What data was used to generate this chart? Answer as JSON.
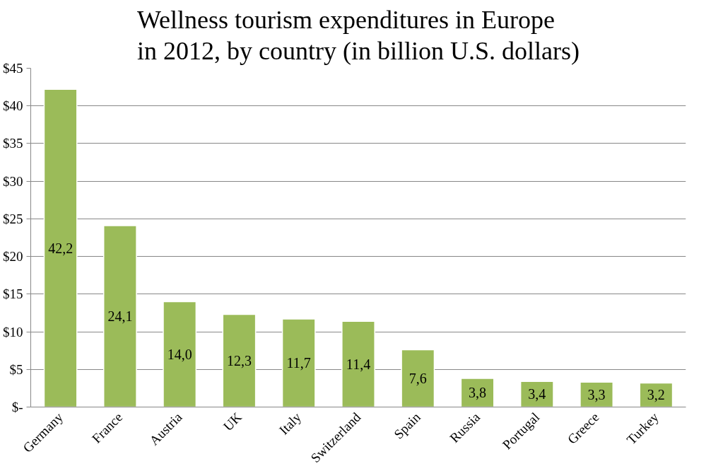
{
  "chart_data": {
    "type": "bar",
    "title": "Wellness tourism expenditures in Europe\nin 2012, by country (in billion U.S. dollars)",
    "categories": [
      "Germany",
      "France",
      "Austria",
      "UK",
      "Italy",
      "Switzerland",
      "Spain",
      "Russia",
      "Portugal",
      "Greece",
      "Turkey"
    ],
    "values": [
      42.2,
      24.1,
      14.0,
      12.3,
      11.7,
      11.4,
      7.6,
      3.8,
      3.4,
      3.3,
      3.2
    ],
    "value_labels": [
      "42,2",
      "24,1",
      "14,0",
      "12,3",
      "11,7",
      "11,4",
      "7,6",
      "3,8",
      "3,4",
      "3,3",
      "3,2"
    ],
    "color": "#9bbb59",
    "ylim": [
      0,
      45
    ],
    "yticks": [
      {
        "value": 0,
        "label": "$-"
      },
      {
        "value": 5,
        "label": "$5"
      },
      {
        "value": 10,
        "label": "$10"
      },
      {
        "value": 15,
        "label": "$15"
      },
      {
        "value": 20,
        "label": "$20"
      },
      {
        "value": 25,
        "label": "$25"
      },
      {
        "value": 30,
        "label": "$30"
      },
      {
        "value": 35,
        "label": "$35"
      },
      {
        "value": 40,
        "label": "$40"
      },
      {
        "value": 45,
        "label": "$45"
      }
    ],
    "grid": "y"
  }
}
